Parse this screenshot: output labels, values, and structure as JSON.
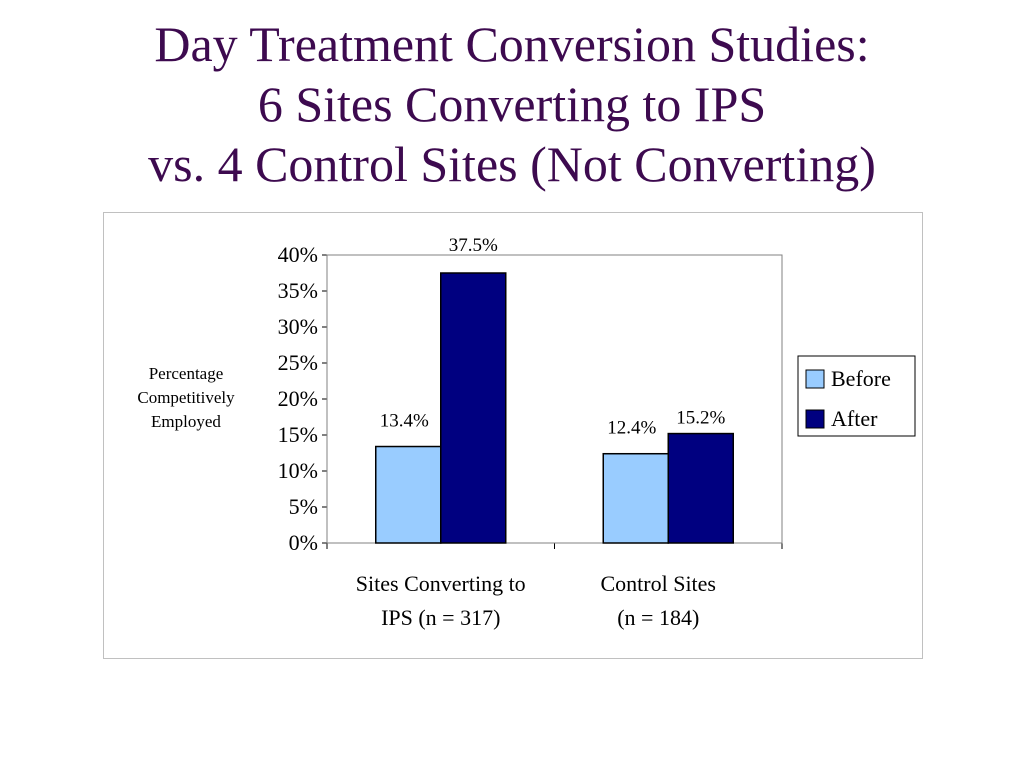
{
  "slide": {
    "title_lines": [
      "Day Treatment Conversion Studies:",
      "6 Sites Converting to IPS",
      "vs. 4 Control Sites (Not Converting)"
    ]
  },
  "colors": {
    "title": "#3d0a4f",
    "before": "#99ccff",
    "after": "#000080",
    "frame": "#c0c0c0"
  },
  "chart_data": {
    "type": "bar",
    "title": "",
    "ylabel_lines": [
      "Percentage",
      "Competitively",
      "Employed"
    ],
    "xlabel": "",
    "categories": [
      [
        "Sites Converting to",
        "IPS (n = 317)"
      ],
      [
        "Control Sites",
        "(n = 184)"
      ]
    ],
    "series": [
      {
        "name": "Before",
        "values": [
          13.4,
          12.4
        ],
        "labels": [
          "13.4%",
          "12.4%"
        ],
        "color": "#99ccff"
      },
      {
        "name": "After",
        "values": [
          37.5,
          15.2
        ],
        "labels": [
          "37.5%",
          "15.2%"
        ],
        "color": "#000080"
      }
    ],
    "ylim": [
      0,
      40
    ],
    "yticks": [
      0,
      5,
      10,
      15,
      20,
      25,
      30,
      35,
      40
    ],
    "ytick_labels": [
      "0%",
      "5%",
      "10%",
      "15%",
      "20%",
      "25%",
      "30%",
      "35%",
      "40%"
    ],
    "grid": false,
    "legend_position": "right"
  }
}
